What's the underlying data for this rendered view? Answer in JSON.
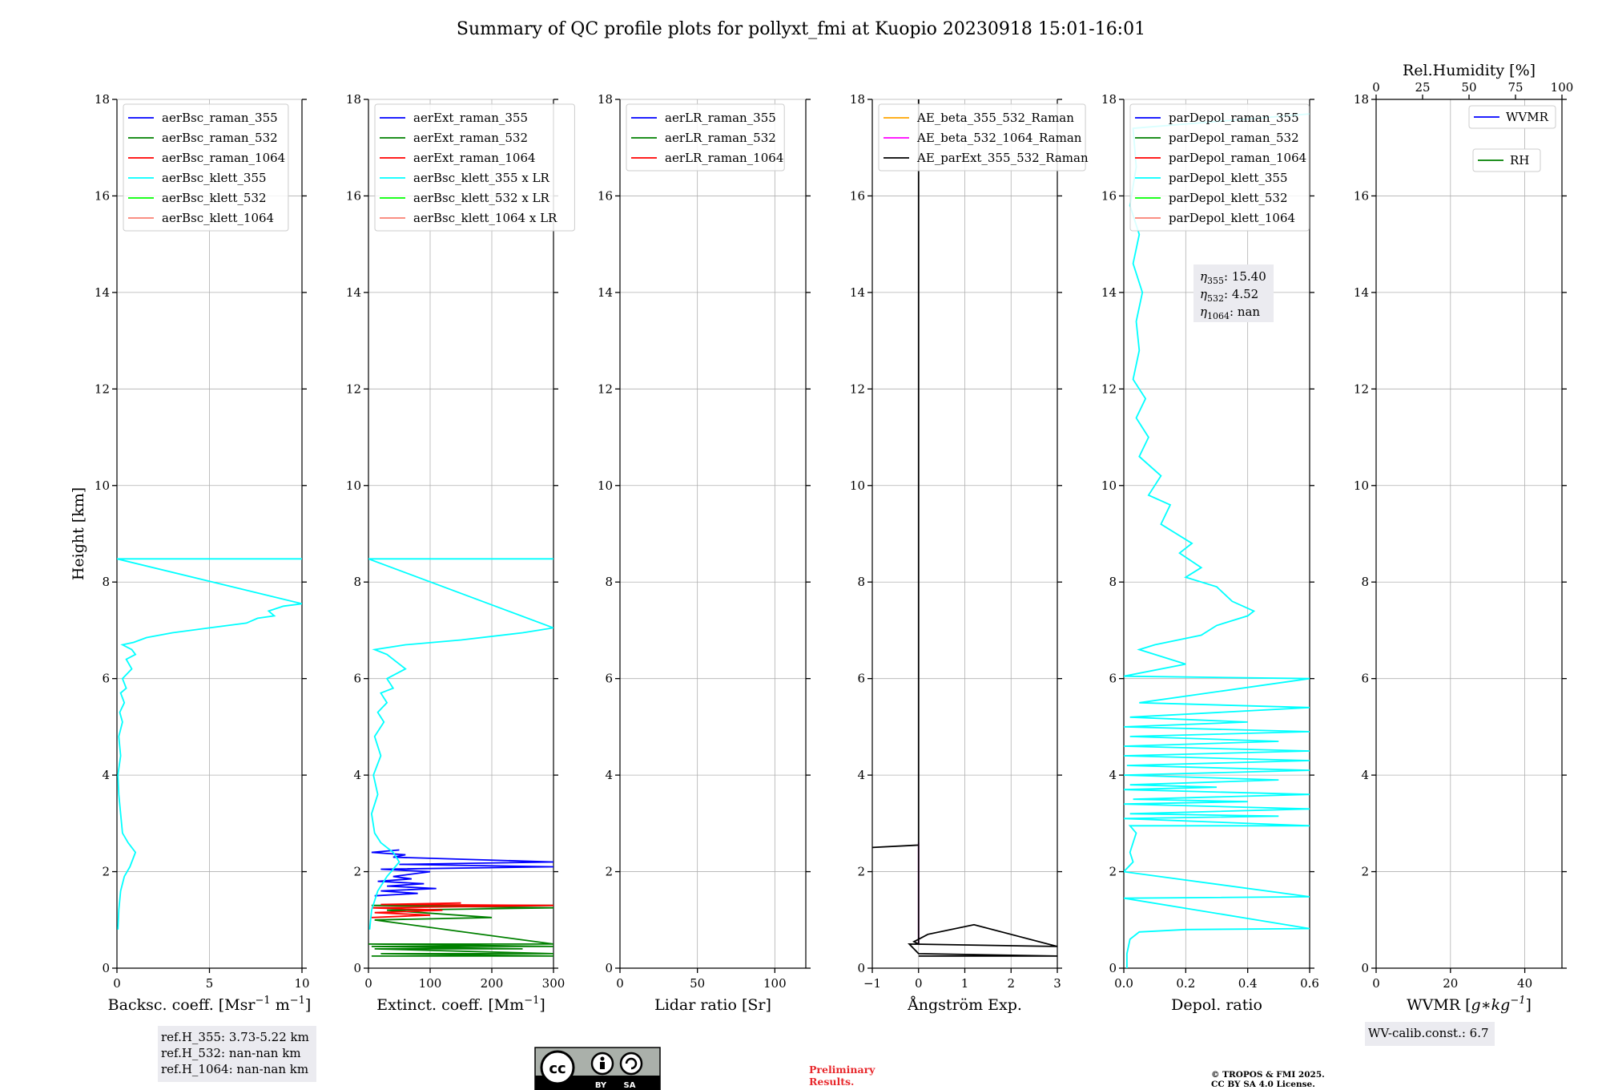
{
  "title": "Summary of QC profile plots for pollyxt_fmi at Kuopio 20230918 15:01-16:01",
  "y_axis": {
    "label": "Height [km]",
    "ticks": [
      "0",
      "2",
      "4",
      "6",
      "8",
      "10",
      "12",
      "14",
      "16",
      "18"
    ],
    "ylim": [
      0,
      18
    ]
  },
  "colors": {
    "raman_355": "#0000ff",
    "raman_532": "#008000",
    "raman_1064": "#ff0000",
    "klett_355": "#00ffff",
    "klett_532": "#00ff00",
    "klett_1064": "#fa8072",
    "ae_beta_355_532": "#ffa500",
    "ae_beta_532_1064": "#ff00ff",
    "ae_parext": "#000000"
  },
  "charts": [
    {
      "id": "bsc",
      "xlabel": "Backsc. coeff. [Msr$^{-1}$ m$^{-1}$]",
      "xlabel_parts": [
        "Backsc. coeff. [Msr",
        "−1",
        " m",
        "−1",
        "]"
      ],
      "xlim": [
        0,
        10
      ],
      "xticks": [
        "0",
        "5",
        "10"
      ],
      "legend": [
        "aerBsc_raman_355",
        "aerBsc_raman_532",
        "aerBsc_raman_1064",
        "aerBsc_klett_355",
        "aerBsc_klett_532",
        "aerBsc_klett_1064"
      ],
      "legend_colors": [
        "raman_355",
        "raman_532",
        "raman_1064",
        "klett_355",
        "klett_532",
        "klett_1064"
      ],
      "info": [
        "ref.H_355: 3.73-5.22 km",
        "ref.H_532: nan-nan km",
        "ref.H_1064: nan-nan km"
      ],
      "series": [
        {
          "name": "aerBsc_klett_355",
          "color": "klett_355",
          "x": [
            0.05,
            0.1,
            0.2,
            0.4,
            0.7,
            0.9,
            1.0,
            0.6,
            0.3,
            0.2,
            0.1,
            0.05,
            0.2,
            0.1,
            0.3,
            0.15,
            0.4,
            0.2,
            0.5,
            0.3,
            0.8,
            0.5,
            1.0,
            0.8,
            0.3,
            0.9,
            1.6,
            3.0,
            5.0,
            7.0,
            7.6,
            8.5,
            8.2,
            9.0,
            10.0,
            0.0,
            10.0
          ],
          "y": [
            0.8,
            1.2,
            1.6,
            1.9,
            2.1,
            2.3,
            2.4,
            2.6,
            2.8,
            3.2,
            3.6,
            4.0,
            4.4,
            4.8,
            5.1,
            5.3,
            5.5,
            5.7,
            5.8,
            6.0,
            6.2,
            6.4,
            6.5,
            6.6,
            6.7,
            6.75,
            6.85,
            6.95,
            7.05,
            7.15,
            7.25,
            7.3,
            7.4,
            7.5,
            7.55,
            8.48,
            8.48
          ]
        }
      ]
    },
    {
      "id": "ext",
      "xlabel": "Extinct. coeff. [Mm$^{-1}$]",
      "xlabel_parts": [
        "Extinct. coeff. [Mm",
        "−1",
        "",
        "",
        "]"
      ],
      "xlim": [
        0,
        300
      ],
      "xticks": [
        "0",
        "100",
        "200",
        "300"
      ],
      "legend": [
        "aerExt_raman_355",
        "aerExt_raman_532",
        "aerExt_raman_1064",
        "aerBsc_klett_355 x LR",
        "aerBsc_klett_532 x LR",
        "aerBsc_klett_1064 x LR"
      ],
      "legend_colors": [
        "raman_355",
        "raman_532",
        "raman_1064",
        "klett_355",
        "klett_532",
        "klett_1064"
      ],
      "series": [
        {
          "name": "aerExt_raman_355",
          "color": "raman_355",
          "x": [
            10,
            80,
            20,
            110,
            30,
            90,
            15,
            70,
            40,
            100,
            20,
            300,
            50,
            300,
            40,
            60,
            5,
            50
          ],
          "y": [
            1.5,
            1.55,
            1.6,
            1.65,
            1.7,
            1.75,
            1.8,
            1.85,
            1.9,
            2.0,
            2.05,
            2.1,
            2.15,
            2.2,
            2.3,
            2.35,
            2.4,
            2.45
          ]
        },
        {
          "name": "aerExt_raman_532",
          "color": "raman_532",
          "x": [
            5,
            300,
            20,
            300,
            10,
            250,
            5,
            300,
            0,
            300,
            10,
            200,
            30,
            300,
            5,
            300
          ],
          "y": [
            0.25,
            0.25,
            0.3,
            0.3,
            0.4,
            0.4,
            0.45,
            0.45,
            0.5,
            0.5,
            1.0,
            1.05,
            1.2,
            1.25,
            1.3,
            1.3
          ]
        },
        {
          "name": "aerExt_raman_1064",
          "color": "raman_1064",
          "x": [
            5,
            100,
            10,
            120,
            5,
            300,
            20,
            150
          ],
          "y": [
            1.05,
            1.1,
            1.15,
            1.2,
            1.25,
            1.3,
            1.32,
            1.35
          ]
        },
        {
          "name": "aerBsc_klett_355 x LR",
          "color": "klett_355",
          "x": [
            2,
            5,
            15,
            30,
            50,
            40,
            20,
            10,
            5,
            15,
            8,
            20,
            10,
            25,
            15,
            30,
            20,
            40,
            30,
            60,
            40,
            30,
            10,
            60,
            150,
            250,
            300,
            0,
            300
          ],
          "y": [
            0.8,
            1.2,
            1.6,
            1.9,
            2.2,
            2.4,
            2.6,
            2.8,
            3.2,
            3.6,
            4.0,
            4.4,
            4.8,
            5.1,
            5.3,
            5.5,
            5.7,
            5.8,
            6.0,
            6.2,
            6.4,
            6.5,
            6.6,
            6.7,
            6.8,
            6.95,
            7.05,
            8.48,
            8.48
          ]
        }
      ]
    },
    {
      "id": "lr",
      "xlabel": "Lidar ratio [Sr]",
      "xlabel_parts": [
        "Lidar ratio [Sr]",
        "",
        "",
        "",
        ""
      ],
      "xlim": [
        0,
        120
      ],
      "xticks": [
        "0",
        "50",
        "100"
      ],
      "legend": [
        "aerLR_raman_355",
        "aerLR_raman_532",
        "aerLR_raman_1064"
      ],
      "legend_colors": [
        "raman_355",
        "raman_532",
        "raman_1064"
      ],
      "series": []
    },
    {
      "id": "ae",
      "xlabel": "Ångström Exp.",
      "xlabel_parts": [
        "Ångström Exp.",
        "",
        "",
        "",
        ""
      ],
      "xlim": [
        -1,
        3
      ],
      "xticks": [
        "−1",
        "0",
        "1",
        "2",
        "3"
      ],
      "legend": [
        "AE_beta_355_532_Raman",
        "AE_beta_532_1064_Raman",
        "AE_parExt_355_532_Raman"
      ],
      "legend_colors": [
        "ae_beta_355_532",
        "ae_beta_532_1064",
        "ae_parext"
      ],
      "series": [
        {
          "name": "AE_beta_532_1064_Raman",
          "color": "ae_beta_532_1064",
          "x": [
            0,
            0
          ],
          "y": [
            0.5,
            2.6
          ]
        },
        {
          "name": "AE_parExt_355_532_Raman",
          "color": "ae_parext",
          "x": [
            0,
            3,
            0,
            -0.2,
            3,
            1.2,
            0.2,
            0,
            -0.1,
            0,
            0,
            -1,
            0,
            0
          ],
          "y": [
            0.25,
            0.25,
            0.3,
            0.5,
            0.45,
            0.9,
            0.7,
            0.6,
            0.55,
            0.5,
            2.55,
            2.5,
            2.55,
            18
          ]
        }
      ]
    },
    {
      "id": "dep",
      "xlabel": "Depol. ratio",
      "xlabel_parts": [
        "Depol. ratio",
        "",
        "",
        "",
        ""
      ],
      "xlim": [
        0,
        0.6
      ],
      "xticks": [
        "0.0",
        "0.2",
        "0.4",
        "0.6"
      ],
      "legend": [
        "parDepol_raman_355",
        "parDepol_raman_532",
        "parDepol_raman_1064",
        "parDepol_klett_355",
        "parDepol_klett_532",
        "parDepol_klett_1064"
      ],
      "legend_colors": [
        "raman_355",
        "raman_532",
        "raman_1064",
        "klett_355",
        "klett_532",
        "klett_1064"
      ],
      "eta": [
        {
          "sub": "355",
          "val": "15.40"
        },
        {
          "sub": "532",
          "val": "4.52"
        },
        {
          "sub": "1064",
          "val": "nan"
        }
      ],
      "series": [
        {
          "name": "parDepol_klett_355",
          "color": "klett_355",
          "x": [
            0.01,
            0.01,
            0.02,
            0.05,
            0.2,
            0.6,
            0.0,
            0.6,
            0.0,
            0.03,
            0.02,
            0.03,
            0.04,
            0.02,
            0.6,
            0.0,
            0.5,
            0.02,
            0.6,
            0.0,
            0.4,
            0.03,
            0.6,
            0.0,
            0.3,
            0.02,
            0.5,
            0.0,
            0.6,
            0.01,
            0.6,
            0.0,
            0.6,
            0.0,
            0.5,
            0.02,
            0.6,
            0.0,
            0.4,
            0.02,
            0.6,
            0.05,
            0.6,
            0.0,
            0.2,
            0.05,
            0.1,
            0.25,
            0.3,
            0.4,
            0.42,
            0.35,
            0.3,
            0.2,
            0.25,
            0.18,
            0.22,
            0.12,
            0.15,
            0.08,
            0.12,
            0.05,
            0.08,
            0.04,
            0.07,
            0.03,
            0.05,
            0.04,
            0.06,
            0.03,
            0.05,
            0.02,
            0.04,
            0.03,
            0.6
          ],
          "y": [
            0,
            0.3,
            0.6,
            0.75,
            0.8,
            0.82,
            1.45,
            1.48,
            2.0,
            2.2,
            2.4,
            2.6,
            2.8,
            2.95,
            2.95,
            3.1,
            3.15,
            3.2,
            3.3,
            3.4,
            3.45,
            3.5,
            3.6,
            3.7,
            3.75,
            3.8,
            3.9,
            4.0,
            4.1,
            4.2,
            4.3,
            4.4,
            4.5,
            4.6,
            4.7,
            4.8,
            4.9,
            5.0,
            5.1,
            5.2,
            5.4,
            5.5,
            6.0,
            6.05,
            6.3,
            6.6,
            6.7,
            6.9,
            7.1,
            7.3,
            7.4,
            7.6,
            7.9,
            8.1,
            8.3,
            8.6,
            8.8,
            9.2,
            9.6,
            9.8,
            10.2,
            10.6,
            11.0,
            11.4,
            11.8,
            12.2,
            12.8,
            13.4,
            14.0,
            14.6,
            15.2,
            15.8,
            16.6,
            17.4,
            17.7
          ]
        }
      ]
    },
    {
      "id": "wv",
      "xlabel": "WVMR [g*kg^-1]",
      "xlabel_parts": [
        "WVMR [",
        "",
        "",
        "",
        ""
      ],
      "xlim": [
        0,
        50
      ],
      "xticks": [
        "0",
        "20",
        "40"
      ],
      "top_axis": {
        "label": "Rel.Humidity [%]",
        "ticks": [
          "0",
          "25",
          "50",
          "75",
          "100"
        ],
        "xlim": [
          0,
          100
        ]
      },
      "legend": [
        "WVMR",
        "RH"
      ],
      "legend_colors": [
        "raman_355",
        "raman_532"
      ],
      "info": [
        "WV-calib.const.: 6.7"
      ],
      "series": []
    }
  ],
  "footer": {
    "cc_badge": "CC BY SA",
    "preliminary": [
      "Preliminary",
      "Results."
    ],
    "copyright": [
      "© TROPOS & FMI 2025.",
      "CC BY SA 4.0 License."
    ]
  }
}
